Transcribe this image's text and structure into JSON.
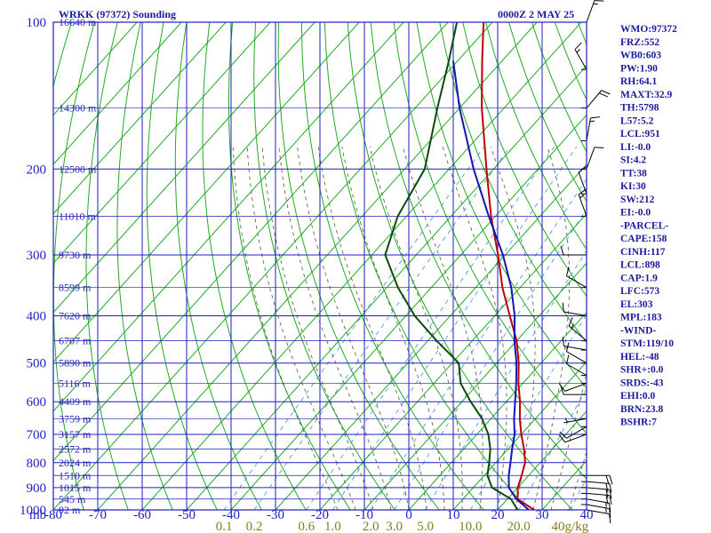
{
  "header": {
    "title": "WRKK (97372) Sounding",
    "time": "0000Z  2 MAY 25",
    "unit": "mb"
  },
  "indices": [
    "WMO:97372",
    "FRZ:552",
    "WB0:603",
    "PW:1.90",
    "RH:64.1",
    "MAXT:32.9",
    "TH:5798",
    "L57:5.2",
    "LCL:951",
    "LI:-0.0",
    "SI:4.2",
    "TT:38",
    "KI:30",
    "SW:212",
    "EI:-0.0",
    "-PARCEL-",
    "CAPE:158",
    "CINH:117",
    "LCL:898",
    "CAP:1.9",
    "LFC:573",
    "EL:303",
    "MPL:183",
    "-WIND-",
    "STM:119/10",
    "HEL:-48",
    "SHR+:0.0",
    "SRDS:-43",
    "EHI:0.0",
    "BRN:23.8",
    "BSHR:7"
  ],
  "colors": {
    "frame": "#1f1fc0",
    "dry_adiabat": "#22aa22",
    "moist_adiabat": "#555533",
    "mixing_ratio": "#3c8cf0",
    "temperature": "#c00000",
    "parcel": "#1414b4",
    "dewpoint": "#0a4a0a",
    "wind": "#000000"
  },
  "chart_data": {
    "type": "skew-t log-p sounding",
    "y_axis": {
      "label": "mb",
      "scale": "log",
      "range": [
        1000,
        100
      ],
      "ticks": [
        1000,
        900,
        800,
        700,
        600,
        500,
        400,
        300,
        200,
        100
      ]
    },
    "x_axis": {
      "label": "°C",
      "range": [
        -80,
        40
      ],
      "ticks": [
        -80,
        -70,
        -60,
        -50,
        -40,
        -30,
        -20,
        -10,
        0,
        10,
        20,
        30,
        40
      ]
    },
    "mixing_ratio_labels": [
      "0.1",
      "0.2",
      "0.6",
      "1.0",
      "2.0",
      "3.0",
      "5.0",
      "10.0",
      "20.0",
      "40g/kg"
    ],
    "height_labels": [
      {
        "p": 1000,
        "label": "92 m"
      },
      {
        "p": 950,
        "label": "545 m"
      },
      {
        "p": 900,
        "label": "1015 m"
      },
      {
        "p": 850,
        "label": "1510 m"
      },
      {
        "p": 800,
        "label": "2024 m"
      },
      {
        "p": 750,
        "label": "2572 m"
      },
      {
        "p": 700,
        "label": "3157 m"
      },
      {
        "p": 650,
        "label": "3759 m"
      },
      {
        "p": 600,
        "label": "4409 m"
      },
      {
        "p": 550,
        "label": "5116 m"
      },
      {
        "p": 500,
        "label": "5890 m"
      },
      {
        "p": 450,
        "label": "6707 m"
      },
      {
        "p": 400,
        "label": "7620 m"
      },
      {
        "p": 350,
        "label": "8599 m"
      },
      {
        "p": 300,
        "label": "9730 m"
      },
      {
        "p": 250,
        "label": "11010 m"
      },
      {
        "p": 200,
        "label": "12500 m"
      },
      {
        "p": 150,
        "label": "14300 m"
      },
      {
        "p": 100,
        "label": "16640 m"
      }
    ],
    "temperature": [
      {
        "p": 1000,
        "t": 28.2
      },
      {
        "p": 950,
        "t": 22.3
      },
      {
        "p": 900,
        "t": 20.0
      },
      {
        "p": 850,
        "t": 18.4
      },
      {
        "p": 800,
        "t": 16.6
      },
      {
        "p": 750,
        "t": 13.6
      },
      {
        "p": 700,
        "t": 10.0
      },
      {
        "p": 650,
        "t": 6.5
      },
      {
        "p": 600,
        "t": 3.1
      },
      {
        "p": 550,
        "t": -1.0
      },
      {
        "p": 500,
        "t": -5.0
      },
      {
        "p": 450,
        "t": -10.0
      },
      {
        "p": 400,
        "t": -16.6
      },
      {
        "p": 350,
        "t": -24.0
      },
      {
        "p": 300,
        "t": -31.6
      },
      {
        "p": 250,
        "t": -41.0
      },
      {
        "p": 200,
        "t": -51.6
      },
      {
        "p": 150,
        "t": -65.0
      },
      {
        "p": 120,
        "t": -74.5
      },
      {
        "p": 100,
        "t": -82.0
      }
    ],
    "dewpoint": [
      {
        "p": 1000,
        "t": 24.5
      },
      {
        "p": 950,
        "t": 20.8
      },
      {
        "p": 900,
        "t": 14.2
      },
      {
        "p": 850,
        "t": 10.7
      },
      {
        "p": 800,
        "t": 8.5
      },
      {
        "p": 750,
        "t": 6.0
      },
      {
        "p": 700,
        "t": 2.6
      },
      {
        "p": 650,
        "t": -2.0
      },
      {
        "p": 600,
        "t": -8.0
      },
      {
        "p": 550,
        "t": -14.0
      },
      {
        "p": 500,
        "t": -18.5
      },
      {
        "p": 450,
        "t": -28.0
      },
      {
        "p": 400,
        "t": -38.0
      },
      {
        "p": 350,
        "t": -47.5
      },
      {
        "p": 300,
        "t": -57.0
      },
      {
        "p": 250,
        "t": -62.0
      },
      {
        "p": 200,
        "t": -65.5
      },
      {
        "p": 150,
        "t": -75.0
      },
      {
        "p": 120,
        "t": -82.0
      },
      {
        "p": 100,
        "t": -88.0
      }
    ],
    "parcel": [
      {
        "p": 1000,
        "t": 27.0
      },
      {
        "p": 950,
        "t": 22.0
      },
      {
        "p": 900,
        "t": 18.0
      },
      {
        "p": 850,
        "t": 15.5
      },
      {
        "p": 800,
        "t": 13.3
      },
      {
        "p": 750,
        "t": 10.9
      },
      {
        "p": 700,
        "t": 8.5
      },
      {
        "p": 650,
        "t": 5.2
      },
      {
        "p": 600,
        "t": 2.0
      },
      {
        "p": 550,
        "t": -1.5
      },
      {
        "p": 500,
        "t": -5.5
      },
      {
        "p": 450,
        "t": -10.5
      },
      {
        "p": 400,
        "t": -15.5
      },
      {
        "p": 350,
        "t": -22.0
      },
      {
        "p": 300,
        "t": -30.5
      },
      {
        "p": 250,
        "t": -41.5
      },
      {
        "p": 200,
        "t": -54.5
      },
      {
        "p": 150,
        "t": -70.0
      },
      {
        "p": 120,
        "t": -81.0
      }
    ],
    "wind_barbs": [
      {
        "p": 1000,
        "dir": 100,
        "kt": 10
      },
      {
        "p": 975,
        "dir": 100,
        "kt": 15
      },
      {
        "p": 950,
        "dir": 100,
        "kt": 15
      },
      {
        "p": 925,
        "dir": 95,
        "kt": 20
      },
      {
        "p": 900,
        "dir": 95,
        "kt": 20
      },
      {
        "p": 875,
        "dir": 95,
        "kt": 20
      },
      {
        "p": 850,
        "dir": 90,
        "kt": 20
      },
      {
        "p": 700,
        "dir": 250,
        "kt": 10
      },
      {
        "p": 675,
        "dir": 240,
        "kt": 10
      },
      {
        "p": 650,
        "dir": 260,
        "kt": 5
      },
      {
        "p": 580,
        "dir": 270,
        "kt": 10
      },
      {
        "p": 550,
        "dir": 250,
        "kt": 10
      },
      {
        "p": 530,
        "dir": 300,
        "kt": 10
      },
      {
        "p": 500,
        "dir": 300,
        "kt": 10
      },
      {
        "p": 470,
        "dir": 280,
        "kt": 10
      },
      {
        "p": 450,
        "dir": 310,
        "kt": 15
      },
      {
        "p": 400,
        "dir": 280,
        "kt": 10
      },
      {
        "p": 350,
        "dir": 300,
        "kt": 10
      },
      {
        "p": 300,
        "dir": 270,
        "kt": 10
      },
      {
        "p": 250,
        "dir": 340,
        "kt": 15
      },
      {
        "p": 225,
        "dir": 340,
        "kt": 10
      },
      {
        "p": 200,
        "dir": 20,
        "kt": 10
      },
      {
        "p": 175,
        "dir": 10,
        "kt": 15
      },
      {
        "p": 150,
        "dir": 40,
        "kt": 20
      },
      {
        "p": 125,
        "dir": 330,
        "kt": 15
      },
      {
        "p": 100,
        "dir": 20,
        "kt": 15
      }
    ]
  }
}
